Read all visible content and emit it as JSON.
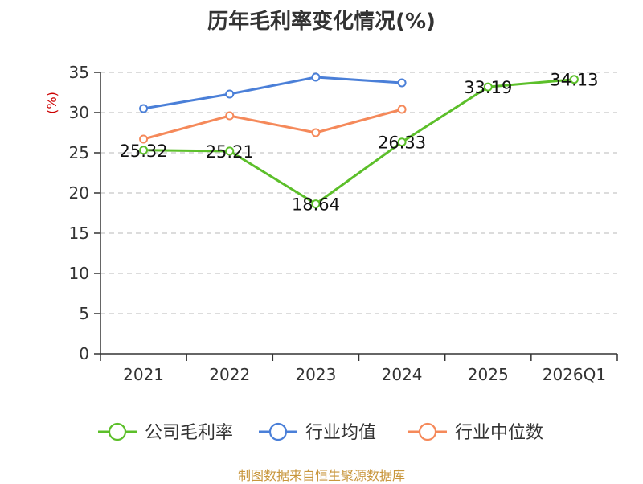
{
  "title": "历年毛利率变化情况(%)",
  "source": "制图数据来自恒生聚源数据库",
  "chart_data": {
    "type": "line",
    "title": "历年毛利率变化情况(%)",
    "ylabel": "(%)",
    "categories": [
      "2021",
      "2022",
      "2023",
      "2024",
      "2025",
      "2026Q1"
    ],
    "ylim": [
      0,
      35
    ],
    "yticks": [
      0,
      5,
      10,
      15,
      20,
      25,
      30,
      35
    ],
    "grid": true,
    "legend_position": "bottom",
    "series": [
      {
        "name": "公司毛利率",
        "color": "#5cbf2a",
        "values": [
          25.32,
          25.21,
          18.64,
          26.33,
          33.19,
          34.13
        ],
        "labels": [
          "25.32",
          "25.21",
          "18.64",
          "26.33",
          "33.19",
          "34.13"
        ]
      },
      {
        "name": "行业均值",
        "color": "#4a7fd8",
        "values": [
          30.5,
          32.3,
          34.4,
          33.7,
          null,
          null
        ]
      },
      {
        "name": "行业中位数",
        "color": "#f5895a",
        "values": [
          26.7,
          29.6,
          27.5,
          30.4,
          null,
          null
        ]
      }
    ]
  }
}
